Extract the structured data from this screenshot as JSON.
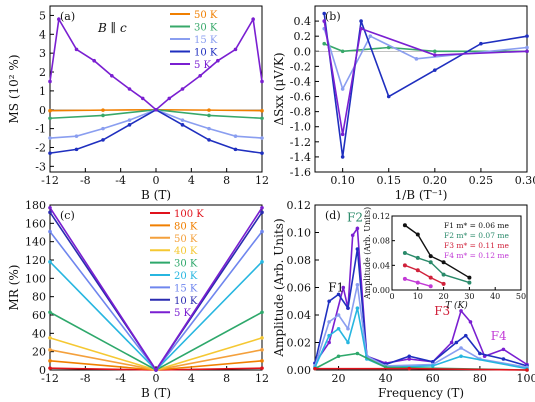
{
  "chart_data": [
    {
      "panel_label": "(a)",
      "type": "line",
      "annotation": "B ∥ c",
      "xlabel": "B (T)",
      "ylabel": "MS (10² %)",
      "xlim": [
        -12,
        12
      ],
      "ylim": [
        -3.3,
        5.5
      ],
      "xticks": [
        "-12",
        "-8",
        "-4",
        "0",
        "4",
        "8",
        "12"
      ],
      "yticks": [
        "-3",
        "-2",
        "-1",
        "0",
        "1",
        "2",
        "3",
        "4",
        "5"
      ],
      "series": [
        {
          "name": "50 K",
          "color": "#f07f00",
          "x": [
            -12,
            -6,
            0,
            6,
            12
          ],
          "y": [
            -0.05,
            -0.02,
            0,
            -0.02,
            -0.05
          ]
        },
        {
          "name": "30 K",
          "color": "#38a86a",
          "x": [
            -12,
            -6,
            0,
            6,
            12
          ],
          "y": [
            -0.45,
            -0.3,
            0,
            -0.3,
            -0.45
          ]
        },
        {
          "name": "15 K",
          "color": "#8a9ef0",
          "x": [
            -12,
            -9,
            -6,
            -3,
            0,
            3,
            6,
            9,
            12
          ],
          "y": [
            -1.5,
            -1.4,
            -1.0,
            -0.55,
            0,
            -0.55,
            -1.0,
            -1.4,
            -1.5
          ]
        },
        {
          "name": "10 K",
          "color": "#1f2fbf",
          "x": [
            -12,
            -9,
            -6,
            -3,
            0,
            3,
            6,
            9,
            12
          ],
          "y": [
            -2.3,
            -2.1,
            -1.6,
            -0.8,
            0,
            -0.8,
            -1.6,
            -2.1,
            -2.3
          ]
        },
        {
          "name": "5 K",
          "color": "#7a1fd1",
          "x": [
            -12,
            -11,
            -9,
            -7,
            -5,
            -3,
            -1.5,
            0,
            1.5,
            3,
            5,
            7,
            9,
            11,
            12
          ],
          "y": [
            1.5,
            4.8,
            3.2,
            2.6,
            1.8,
            1.1,
            0.6,
            0,
            0.6,
            1.1,
            1.8,
            2.6,
            3.2,
            4.8,
            1.5
          ]
        }
      ]
    },
    {
      "panel_label": "(b)",
      "type": "line",
      "xlabel": "1/B (T⁻¹)",
      "ylabel": "ΔSxx (μV/K)",
      "xlim": [
        0.07,
        0.3
      ],
      "ylim": [
        -1.6,
        0.6
      ],
      "xticks": [
        "0.10",
        "0.15",
        "0.20",
        "0.25",
        "0.30"
      ],
      "yticks": [
        "-1.6",
        "-1.4",
        "-1.2",
        "-1.0",
        "-0.8",
        "-0.6",
        "-0.4",
        "-0.2",
        "0.0",
        "0.2",
        "0.4"
      ],
      "series": [
        {
          "name": "",
          "color": "#38a86a",
          "x": [
            0.08,
            0.1,
            0.15,
            0.2,
            0.3
          ],
          "y": [
            0.1,
            0.0,
            0.05,
            0.0,
            0.0
          ]
        },
        {
          "name": "",
          "color": "#8a9ef0",
          "x": [
            0.08,
            0.1,
            0.13,
            0.18,
            0.3
          ],
          "y": [
            0.3,
            -0.5,
            0.2,
            -0.1,
            0.05
          ]
        },
        {
          "name": "",
          "color": "#1f2fbf",
          "x": [
            0.08,
            0.1,
            0.12,
            0.15,
            0.2,
            0.25,
            0.3
          ],
          "y": [
            0.5,
            -1.4,
            0.4,
            -0.6,
            -0.25,
            0.1,
            0.2
          ]
        },
        {
          "name": "",
          "color": "#7a1fd1",
          "x": [
            0.08,
            0.1,
            0.12,
            0.2,
            0.3
          ],
          "y": [
            0.4,
            -1.1,
            0.3,
            -0.05,
            0.0
          ]
        }
      ]
    },
    {
      "panel_label": "(c)",
      "type": "line",
      "xlabel": "B (T)",
      "ylabel": "MR (%)",
      "xlim": [
        -12,
        12
      ],
      "ylim": [
        0,
        180
      ],
      "xticks": [
        "-12",
        "-8",
        "-4",
        "0",
        "4",
        "8",
        "12"
      ],
      "yticks": [
        "0",
        "20",
        "40",
        "60",
        "80",
        "100",
        "120",
        "140",
        "160",
        "180"
      ],
      "series": [
        {
          "name": "100 K",
          "color": "#e0121c",
          "x": [
            -12,
            0,
            12
          ],
          "y": [
            2,
            0,
            2
          ]
        },
        {
          "name": "80 K",
          "color": "#f07f00",
          "x": [
            -12,
            0,
            12
          ],
          "y": [
            10,
            0,
            10
          ]
        },
        {
          "name": "50 K",
          "color": "#f4a03c",
          "x": [
            -12,
            0,
            12
          ],
          "y": [
            22,
            0,
            22
          ]
        },
        {
          "name": "40 K",
          "color": "#f5c832",
          "x": [
            -12,
            0,
            12
          ],
          "y": [
            35,
            0,
            35
          ]
        },
        {
          "name": "30 K",
          "color": "#2ea86b",
          "x": [
            -12,
            0,
            12
          ],
          "y": [
            63,
            0,
            63
          ]
        },
        {
          "name": "20 K",
          "color": "#27b6e0",
          "x": [
            -12,
            0,
            12
          ],
          "y": [
            118,
            0,
            118
          ]
        },
        {
          "name": "15 K",
          "color": "#6f86ee",
          "x": [
            -12,
            0,
            12
          ],
          "y": [
            151,
            0,
            151
          ]
        },
        {
          "name": "10 K",
          "color": "#2a2bb0",
          "x": [
            -12,
            0,
            12
          ],
          "y": [
            172,
            0,
            172
          ]
        },
        {
          "name": "5 K",
          "color": "#7a1fd1",
          "x": [
            -12,
            0,
            12
          ],
          "y": [
            177,
            0,
            177
          ]
        }
      ]
    },
    {
      "panel_label": "(d)",
      "type": "line",
      "xlabel": "Frequency (T)",
      "ylabel": "Amplitude (Arb. Units)",
      "xlim": [
        10,
        100
      ],
      "ylim": [
        0,
        0.12
      ],
      "xticks": [
        "20",
        "40",
        "60",
        "80",
        "100"
      ],
      "yticks": [
        "0.00",
        "0.02",
        "0.04",
        "0.06",
        "0.08",
        "0.10",
        "0.12"
      ],
      "peak_labels": [
        {
          "text": "F1",
          "color": "#111111",
          "x": 19,
          "y": 0.057
        },
        {
          "text": "F2",
          "color": "#2a8a6a",
          "x": 27,
          "y": 0.108
        },
        {
          "text": "F3",
          "color": "#d0213a",
          "x": 64,
          "y": 0.04
        },
        {
          "text": "F4",
          "color": "#c23ad6",
          "x": 88,
          "y": 0.022
        }
      ],
      "series": [
        {
          "name": "",
          "color": "#7a1fd1",
          "x": [
            10,
            16,
            22,
            24,
            26,
            28,
            32,
            40,
            50,
            60,
            68,
            72,
            76,
            82,
            90,
            100
          ],
          "y": [
            0.005,
            0.02,
            0.06,
            0.045,
            0.098,
            0.103,
            0.01,
            0.005,
            0.008,
            0.006,
            0.02,
            0.043,
            0.035,
            0.01,
            0.015,
            0.004
          ]
        },
        {
          "name": "",
          "color": "#1f2fbf",
          "x": [
            10,
            16,
            20,
            24,
            28,
            32,
            40,
            50,
            60,
            70,
            74,
            80,
            90,
            100
          ],
          "y": [
            0.005,
            0.05,
            0.055,
            0.045,
            0.088,
            0.01,
            0.004,
            0.01,
            0.006,
            0.02,
            0.025,
            0.012,
            0.008,
            0.003
          ]
        },
        {
          "name": "",
          "color": "#8a9ef0",
          "x": [
            10,
            16,
            20,
            24,
            28,
            32,
            40,
            60,
            72,
            80,
            100
          ],
          "y": [
            0.003,
            0.035,
            0.04,
            0.03,
            0.062,
            0.01,
            0.003,
            0.004,
            0.016,
            0.008,
            0.002
          ]
        },
        {
          "name": "",
          "color": "#27b6e0",
          "x": [
            10,
            16,
            20,
            24,
            28,
            32,
            40,
            60,
            72,
            100
          ],
          "y": [
            0.002,
            0.025,
            0.03,
            0.02,
            0.045,
            0.008,
            0.002,
            0.003,
            0.01,
            0.001
          ]
        },
        {
          "name": "",
          "color": "#2ea86b",
          "x": [
            10,
            20,
            28,
            40,
            100
          ],
          "y": [
            0.001,
            0.01,
            0.012,
            0.002,
            0.0
          ]
        },
        {
          "name": "",
          "color": "#e0121c",
          "x": [
            10,
            50,
            100
          ],
          "y": [
            0.001,
            0.001,
            0.0
          ]
        }
      ],
      "inset": {
        "xlabel": "T (K)",
        "ylabel": "Amplitude (Arb. Units)",
        "xlim": [
          0,
          50
        ],
        "ylim": [
          0,
          0.12
        ],
        "xticks": [
          "0",
          "10",
          "20",
          "30",
          "40",
          "50"
        ],
        "yticks": [
          "0.00",
          "0.04",
          "0.08",
          "0.12"
        ],
        "legend": [
          {
            "name": "F1 m* = 0.06 me",
            "color": "#111111"
          },
          {
            "name": "F2 m* = 0.07 me",
            "color": "#2a8a6a"
          },
          {
            "name": "F3 m* = 0.11 me",
            "color": "#d0213a"
          },
          {
            "name": "F4 m* = 0.12 me",
            "color": "#c23ad6"
          }
        ],
        "series": [
          {
            "name": "F1",
            "color": "#111111",
            "x": [
              5,
              10,
              15,
              20,
              30
            ],
            "y": [
              0.105,
              0.09,
              0.055,
              0.045,
              0.02
            ]
          },
          {
            "name": "F2",
            "color": "#2a8a6a",
            "x": [
              5,
              10,
              15,
              20,
              30
            ],
            "y": [
              0.06,
              0.052,
              0.045,
              0.025,
              0.012
            ]
          },
          {
            "name": "F3",
            "color": "#d0213a",
            "x": [
              5,
              10,
              15,
              20
            ],
            "y": [
              0.04,
              0.032,
              0.02,
              0.01
            ]
          },
          {
            "name": "F4",
            "color": "#c23ad6",
            "x": [
              5,
              10,
              15
            ],
            "y": [
              0.018,
              0.012,
              0.006
            ]
          }
        ]
      }
    }
  ]
}
